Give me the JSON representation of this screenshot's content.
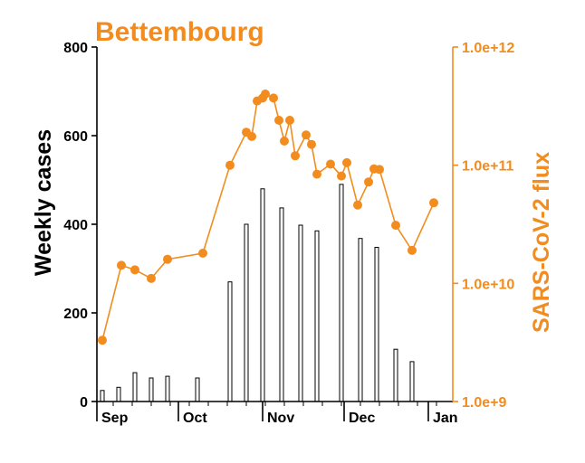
{
  "colors": {
    "accent": "#f28c1e",
    "axis": "#000000",
    "bar_fill": "#ffffff",
    "bar_stroke": "#000000"
  },
  "chart_data": {
    "type": "bar+line",
    "title": "Bettembourg",
    "left_axis": {
      "label": "Weekly cases",
      "range": [
        0,
        800
      ],
      "ticks": [
        0,
        200,
        400,
        600,
        800
      ],
      "tick_labels": [
        "0",
        "200",
        "400",
        "600",
        "800"
      ]
    },
    "right_axis": {
      "label": "SARS-CoV-2 flux",
      "scale": "log",
      "range": [
        1000000000.0,
        1000000000000.0
      ],
      "ticks": [
        1000000000.0,
        10000000000.0,
        100000000000.0,
        1000000000000.0
      ],
      "tick_labels": [
        "1.0e+9",
        "1.0e+10",
        "1.0e+11",
        "1.0e+12"
      ]
    },
    "x_axis": {
      "type": "date",
      "range": [
        "2020-09-01",
        "2021-01-10"
      ],
      "month_labels": [
        {
          "date": "2020-09-01",
          "label": "Sep"
        },
        {
          "date": "2020-10-01",
          "label": "Oct"
        },
        {
          "date": "2020-11-01",
          "label": "Nov"
        },
        {
          "date": "2020-12-01",
          "label": "Dec"
        },
        {
          "date": "2021-01-01",
          "label": "Jan"
        }
      ]
    },
    "bars": {
      "axis": "left",
      "points": [
        {
          "x": "2020-09-03",
          "y": 25
        },
        {
          "x": "2020-09-09",
          "y": 32
        },
        {
          "x": "2020-09-15",
          "y": 65
        },
        {
          "x": "2020-09-21",
          "y": 53
        },
        {
          "x": "2020-09-27",
          "y": 57
        },
        {
          "x": "2020-10-08",
          "y": 53
        },
        {
          "x": "2020-10-20",
          "y": 270
        },
        {
          "x": "2020-10-26",
          "y": 400
        },
        {
          "x": "2020-11-01",
          "y": 480
        },
        {
          "x": "2020-11-08",
          "y": 437
        },
        {
          "x": "2020-11-15",
          "y": 398
        },
        {
          "x": "2020-11-21",
          "y": 385
        },
        {
          "x": "2020-11-30",
          "y": 490
        },
        {
          "x": "2020-12-07",
          "y": 368
        },
        {
          "x": "2020-12-13",
          "y": 348
        },
        {
          "x": "2020-12-20",
          "y": 118
        },
        {
          "x": "2020-12-26",
          "y": 90
        }
      ]
    },
    "line": {
      "axis": "right",
      "points": [
        {
          "x": "2020-09-03",
          "y": 3300000000.0
        },
        {
          "x": "2020-09-10",
          "y": 14200000000.0
        },
        {
          "x": "2020-09-15",
          "y": 13000000000.0
        },
        {
          "x": "2020-09-21",
          "y": 11000000000.0
        },
        {
          "x": "2020-09-27",
          "y": 16000000000.0
        },
        {
          "x": "2020-10-10",
          "y": 18000000000.0
        },
        {
          "x": "2020-10-20",
          "y": 100000000000.0
        },
        {
          "x": "2020-10-26",
          "y": 190000000000.0
        },
        {
          "x": "2020-10-28",
          "y": 175000000000.0
        },
        {
          "x": "2020-10-30",
          "y": 350000000000.0
        },
        {
          "x": "2020-11-01",
          "y": 370000000000.0
        },
        {
          "x": "2020-11-02",
          "y": 400000000000.0
        },
        {
          "x": "2020-11-05",
          "y": 370000000000.0
        },
        {
          "x": "2020-11-07",
          "y": 240000000000.0
        },
        {
          "x": "2020-11-09",
          "y": 160000000000.0
        },
        {
          "x": "2020-11-11",
          "y": 240000000000.0
        },
        {
          "x": "2020-11-13",
          "y": 120000000000.0
        },
        {
          "x": "2020-11-17",
          "y": 180000000000.0
        },
        {
          "x": "2020-11-19",
          "y": 150000000000.0
        },
        {
          "x": "2020-11-21",
          "y": 84000000000.0
        },
        {
          "x": "2020-11-26",
          "y": 102000000000.0
        },
        {
          "x": "2020-11-30",
          "y": 81000000000.0
        },
        {
          "x": "2020-12-02",
          "y": 105000000000.0
        },
        {
          "x": "2020-12-06",
          "y": 46000000000.0
        },
        {
          "x": "2020-12-10",
          "y": 72000000000.0
        },
        {
          "x": "2020-12-12",
          "y": 93000000000.0
        },
        {
          "x": "2020-12-14",
          "y": 92000000000.0
        },
        {
          "x": "2020-12-20",
          "y": 31000000000.0
        },
        {
          "x": "2020-12-26",
          "y": 19000000000.0
        },
        {
          "x": "2021-01-03",
          "y": 48000000000.0
        }
      ]
    }
  }
}
